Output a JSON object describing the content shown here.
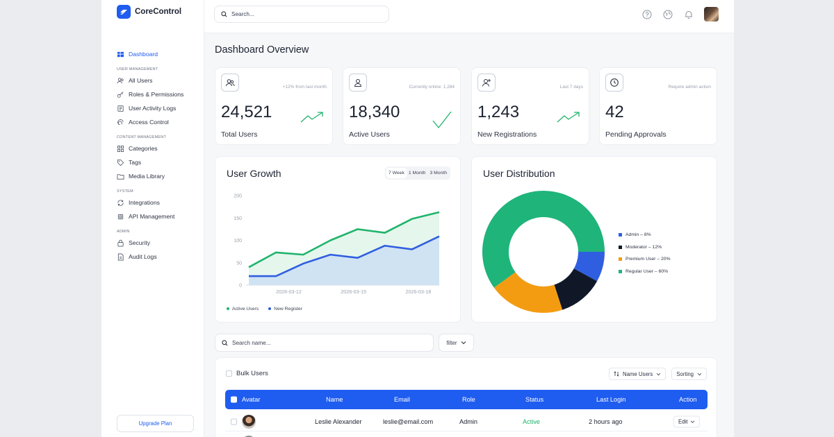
{
  "app": {
    "name": "CoreControl"
  },
  "sidebar": {
    "top_item": {
      "label": "Dashboard",
      "icon": "dashboard-icon"
    },
    "sections": [
      {
        "title": "USER MANAGEMENT",
        "items": [
          {
            "label": "All Users",
            "icon": "users-icon"
          },
          {
            "label": "Roles & Permissions",
            "icon": "key-icon"
          },
          {
            "label": "User Activity Logs",
            "icon": "activity-log-icon"
          },
          {
            "label": "Access Control",
            "icon": "fingerprint-icon"
          }
        ]
      },
      {
        "title": "CONTENT MANAGEMENT",
        "items": [
          {
            "label": "Categories",
            "icon": "grid-icon"
          },
          {
            "label": "Tags",
            "icon": "tag-icon"
          },
          {
            "label": "Media Library",
            "icon": "folder-icon"
          }
        ]
      },
      {
        "title": "SYSTEM",
        "items": [
          {
            "label": "Integrations",
            "icon": "sync-icon"
          },
          {
            "label": "API Management",
            "icon": "chip-icon"
          }
        ]
      },
      {
        "title": "ADMIN",
        "items": [
          {
            "label": "Security",
            "icon": "lock-icon"
          },
          {
            "label": "Audit Logs",
            "icon": "document-icon"
          }
        ]
      }
    ],
    "upgrade_label": "Upgrade Plan"
  },
  "topbar": {
    "search_placeholder": "Search..."
  },
  "page_title": "Dashboard Overview",
  "stats": [
    {
      "icon": "users-icon",
      "note": "+12% from last month",
      "value": "24,521",
      "label": "Total Users",
      "trend": "trend-up"
    },
    {
      "icon": "user-icon",
      "note": "Currently online: 1,284",
      "value": "18,340",
      "label": "Active Users",
      "trend": "check"
    },
    {
      "icon": "user-plus-icon",
      "note": "Last 7 days",
      "value": "1,243",
      "label": "New Registrations",
      "trend": "trend-up"
    },
    {
      "icon": "clock-icon",
      "note": "Require admin action",
      "value": "42",
      "label": "Pending Approvals",
      "trend": ""
    }
  ],
  "user_growth": {
    "title": "User Growth",
    "periods": [
      "7 Week",
      "1 Month",
      "3 Month"
    ],
    "active_period": "7 Week"
  },
  "user_distribution": {
    "title": "User Distribution"
  },
  "chart_data": [
    {
      "type": "area",
      "title": "User Growth",
      "ylim": [
        0,
        200
      ],
      "yticks": [
        0,
        50,
        100,
        150,
        200
      ],
      "xtick_labels": [
        "2026-03-12",
        "2026-03-15",
        "2026-03-18"
      ],
      "series": [
        {
          "name": "Active Users",
          "color": "#1fb46b",
          "values": [
            40,
            73,
            68,
            100,
            125,
            117,
            148,
            163
          ]
        },
        {
          "name": "New Register",
          "color": "#2f5fe0",
          "values": [
            20,
            20,
            48,
            68,
            61,
            88,
            80,
            109
          ]
        }
      ],
      "legend": "bottom-left"
    },
    {
      "type": "pie",
      "title": "User Distribution",
      "donut": true,
      "slices": [
        {
          "label": "Admin",
          "value": 8,
          "color": "#2f5fe0",
          "legend_text": "Admin – 8%"
        },
        {
          "label": "Moderator",
          "value": 12,
          "color": "#101828",
          "legend_text": "Moderator – 12%"
        },
        {
          "label": "Premium User",
          "value": 20,
          "color": "#f39c12",
          "legend_text": "Premium User – 20%"
        },
        {
          "label": "Regular User",
          "value": 60,
          "color": "#1fb47a",
          "legend_text": "Regular User – 60%"
        }
      ],
      "legend": "right"
    }
  ],
  "table": {
    "search_placeholder": "Search name...",
    "filter_label": "filter",
    "bulk_label": "Bulk Users",
    "name_users_label": "Name Users",
    "sorting_label": "Sorting",
    "columns": [
      "Avatar",
      "Name",
      "Email",
      "Role",
      "Status",
      "Last Login",
      "Action"
    ],
    "rows": [
      {
        "name": "Leslie Alexander",
        "email": "leslie@email.com",
        "role": "Admin",
        "status": "Active",
        "last_login": "2 hours ago",
        "action": "Edit"
      }
    ]
  }
}
